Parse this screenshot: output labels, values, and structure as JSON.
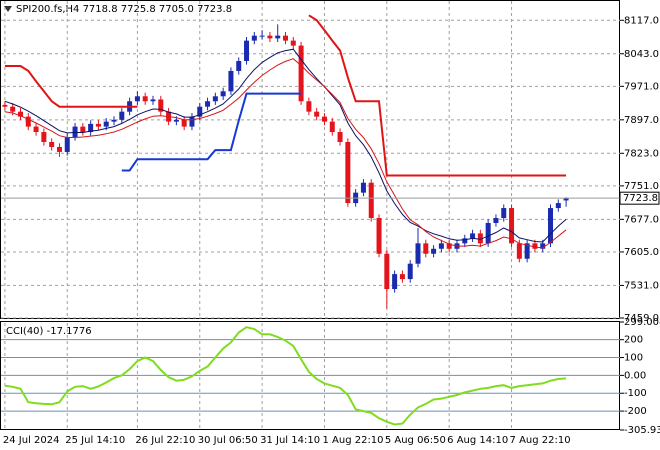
{
  "chart_data": [
    {
      "type": "candlestick",
      "title": "SPI200.fs,H4  7718.8 7725.8 7705.0 7723.8",
      "categories": [
        "24 Jul 2024",
        null,
        null,
        null,
        null,
        null,
        null,
        null,
        "25 Jul 14:10",
        null,
        null,
        null,
        null,
        null,
        null,
        null,
        null,
        "26 Jul 22:10",
        null,
        null,
        null,
        null,
        null,
        null,
        null,
        "30 Jul 06:50",
        null,
        null,
        null,
        null,
        null,
        null,
        null,
        "31 Jul 14:10",
        null,
        null,
        null,
        null,
        null,
        null,
        null,
        "1 Aug 22:10",
        null,
        null,
        null,
        null,
        null,
        null,
        null,
        "5 Aug 06:50",
        null,
        null,
        null,
        null,
        null,
        null,
        null,
        "6 Aug 14:10",
        null,
        null,
        null,
        null,
        null,
        null,
        null,
        "7 Aug 22:10",
        null,
        null,
        null,
        null,
        null,
        null,
        null
      ],
      "open": [
        7930,
        7926,
        7915,
        7904,
        7882,
        7870,
        7848,
        7837,
        7826,
        7859,
        7882,
        7870,
        7888,
        7882,
        7893,
        7897,
        7915,
        7938,
        7949,
        7938,
        7942,
        7915,
        7893,
        7897,
        7882,
        7904,
        7926,
        7938,
        7949,
        7960,
        8005,
        8027,
        8072,
        8083,
        8083,
        8077,
        8083,
        8072,
        8061,
        7938,
        7915,
        7904,
        7893,
        7870,
        7848,
        7713,
        7736,
        7758,
        7680,
        7601,
        7523,
        7556,
        7545,
        7579,
        7624,
        7601,
        7612,
        7624,
        7612,
        7624,
        7635,
        7646,
        7624,
        7669,
        7680,
        7702,
        7624,
        7590,
        7624,
        7612,
        7624,
        7702,
        7718.8
      ],
      "high": [
        7938,
        7934,
        7923,
        7912,
        7890,
        7878,
        7856,
        7845,
        7867,
        7890,
        7890,
        7896,
        7896,
        7901,
        7905,
        7923,
        7946,
        7960,
        7957,
        7950,
        7950,
        7923,
        7905,
        7905,
        7912,
        7934,
        7946,
        7957,
        7968,
        8013,
        8035,
        8080,
        8091,
        8095,
        8091,
        8108,
        8091,
        8080,
        8069,
        7946,
        7923,
        7912,
        7901,
        7878,
        7856,
        7744,
        7766,
        7766,
        7688,
        7609,
        7564,
        7564,
        7587,
        7658,
        7632,
        7620,
        7632,
        7632,
        7632,
        7643,
        7654,
        7654,
        7677,
        7688,
        7710,
        7710,
        7632,
        7632,
        7632,
        7632,
        7710,
        7721,
        7725.8
      ],
      "low": [
        7918,
        7907,
        7896,
        7874,
        7862,
        7840,
        7829,
        7815,
        7818,
        7851,
        7862,
        7862,
        7874,
        7874,
        7885,
        7889,
        7907,
        7930,
        7930,
        7930,
        7907,
        7885,
        7885,
        7874,
        7874,
        7896,
        7918,
        7930,
        7941,
        7952,
        7997,
        8019,
        8064,
        8075,
        8069,
        8069,
        8064,
        8053,
        7930,
        7907,
        7896,
        7885,
        7862,
        7840,
        7705,
        7705,
        7728,
        7672,
        7593,
        7480,
        7515,
        7537,
        7537,
        7571,
        7593,
        7593,
        7604,
        7604,
        7604,
        7616,
        7627,
        7616,
        7616,
        7661,
        7672,
        7616,
        7582,
        7582,
        7604,
        7604,
        7616,
        7694,
        7705.0
      ],
      "close": [
        7926,
        7915,
        7904,
        7882,
        7870,
        7848,
        7837,
        7826,
        7859,
        7882,
        7870,
        7888,
        7882,
        7893,
        7897,
        7915,
        7938,
        7949,
        7938,
        7942,
        7915,
        7893,
        7897,
        7882,
        7904,
        7926,
        7938,
        7949,
        7960,
        8005,
        8027,
        8072,
        8083,
        8083,
        8077,
        8083,
        8072,
        8061,
        7938,
        7915,
        7904,
        7893,
        7870,
        7848,
        7713,
        7736,
        7758,
        7680,
        7601,
        7523,
        7556,
        7545,
        7579,
        7624,
        7601,
        7612,
        7624,
        7612,
        7624,
        7635,
        7646,
        7624,
        7669,
        7680,
        7702,
        7624,
        7590,
        7624,
        7612,
        7624,
        7702,
        7713,
        7723.8
      ],
      "up_color": "#1a2bb0",
      "down_color": "#e4141c",
      "series": [
        {
          "color": "#0b1266",
          "width": 1,
          "values": [
            7938,
            7932,
            7925,
            7916,
            7906,
            7895,
            7884,
            7873,
            7868,
            7869,
            7869,
            7872,
            7874,
            7878,
            7882,
            7889,
            7898,
            7908,
            7915,
            7921,
            7920,
            7914,
            7910,
            7903,
            7903,
            7908,
            7915,
            7923,
            7932,
            7948,
            7965,
            7988,
            8008,
            8024,
            8035,
            8045,
            8050,
            8053,
            8030,
            8008,
            7988,
            7970,
            7950,
            7930,
            7890,
            7862,
            7842,
            7815,
            7780,
            7740,
            7712,
            7688,
            7670,
            7662,
            7652,
            7645,
            7640,
            7634,
            7631,
            7632,
            7635,
            7633,
            7640,
            7648,
            7658,
            7650,
            7636,
            7632,
            7628,
            7627,
            7645,
            7662,
            7677
          ]
        },
        {
          "color": "#d3161b",
          "width": 1,
          "values": [
            7915,
            7912,
            7906,
            7898,
            7890,
            7881,
            7872,
            7862,
            7858,
            7858,
            7859,
            7861,
            7863,
            7866,
            7870,
            7876,
            7884,
            7892,
            7899,
            7905,
            7906,
            7904,
            7902,
            7897,
            7897,
            7900,
            7905,
            7911,
            7918,
            7931,
            7945,
            7963,
            7980,
            7995,
            8007,
            8018,
            8026,
            8032,
            8017,
            8000,
            7985,
            7970,
            7953,
            7935,
            7900,
            7876,
            7858,
            7833,
            7800,
            7760,
            7730,
            7700,
            7676,
            7665,
            7650,
            7638,
            7630,
            7622,
            7618,
            7618,
            7620,
            7618,
            7624,
            7630,
            7638,
            7634,
            7624,
            7620,
            7616,
            7614,
            7626,
            7640,
            7654
          ]
        },
        {
          "color": "#e01414",
          "width": 2,
          "values": [
            8016,
            8016,
            8016,
            8005,
            7982,
            7960,
            7938,
            7926,
            7926,
            7926,
            7926,
            7926,
            7926,
            7926,
            7926,
            7926,
            7926,
            7926,
            null,
            null,
            null,
            null,
            null,
            null,
            null,
            null,
            null,
            null,
            null,
            null,
            null,
            null,
            null,
            null,
            null,
            null,
            null,
            null,
            null,
            8128,
            8117,
            8095,
            8072,
            8050,
            7990,
            7938,
            7938,
            7938,
            7938,
            7774,
            7774,
            7774,
            7774,
            7774,
            7774,
            7774,
            7774,
            7774,
            7774,
            7774,
            7774,
            7774,
            7774,
            7774,
            7774,
            7774,
            7774,
            7774,
            7774,
            7774,
            7774,
            7774,
            7774
          ]
        },
        {
          "color": "#1638d4",
          "width": 2,
          "values": [
            null,
            null,
            null,
            null,
            null,
            null,
            null,
            null,
            null,
            null,
            null,
            null,
            null,
            null,
            null,
            7785,
            7785,
            7810,
            7810,
            7810,
            7810,
            7810,
            7810,
            7810,
            7810,
            7810,
            7810,
            7830,
            7830,
            7830,
            7895,
            7955,
            7955,
            7955,
            7955,
            7955,
            7955,
            7955,
            7955,
            null,
            null,
            null,
            null,
            null,
            null,
            null,
            null,
            null,
            null,
            null,
            null,
            null,
            null,
            null,
            null,
            null,
            null,
            null,
            null,
            null,
            null,
            null,
            null,
            null,
            null,
            null,
            null,
            null,
            null,
            null,
            null,
            null,
            null
          ]
        }
      ],
      "last_price": 7723.8,
      "ylim": [
        7459,
        8161.8
      ],
      "yticks": [
        {
          "value": 8117,
          "label": "8117.0"
        },
        {
          "value": 8043,
          "label": "8043.0"
        },
        {
          "value": 7971,
          "label": "7971.0"
        },
        {
          "value": 7897,
          "label": "7897.0"
        },
        {
          "value": 7823,
          "label": "7823.0"
        },
        {
          "value": 7751,
          "label": "7751.0"
        },
        {
          "value": 7677,
          "label": "7677.0"
        },
        {
          "value": 7605,
          "label": "7605.0"
        },
        {
          "value": 7531,
          "label": "7531.0"
        },
        {
          "value": 7459,
          "label": "7459.0"
        }
      ],
      "grid": true
    },
    {
      "type": "line",
      "title": "CCI(40) -17.1776",
      "series": [
        {
          "color": "#7fdc1e",
          "width": 2,
          "values": [
            -58,
            -64,
            -75,
            -150,
            -156,
            -160,
            -162,
            -150,
            -90,
            -64,
            -60,
            -75,
            -62,
            -40,
            -15,
            0,
            35,
            80,
            100,
            80,
            30,
            -10,
            -30,
            -25,
            -5,
            25,
            50,
            100,
            150,
            185,
            240,
            270,
            260,
            230,
            230,
            215,
            195,
            165,
            90,
            20,
            -20,
            -45,
            -58,
            -70,
            -110,
            -190,
            -200,
            -210,
            -240,
            -260,
            -275,
            -270,
            -220,
            -180,
            -160,
            -135,
            -130,
            -120,
            -110,
            -95,
            -85,
            -75,
            -70,
            -60,
            -55,
            -70,
            -60,
            -55,
            -50,
            -45,
            -30,
            -20,
            -17.1776
          ]
        }
      ],
      "ylim": [
        -305.939,
        299.0089
      ],
      "yticks": [
        299.0089,
        200,
        100,
        {
          "value": 0,
          "label": "0.00"
        },
        -100,
        -200,
        -305.939
      ],
      "level_color": "#6f91b3",
      "grid": false
    }
  ]
}
